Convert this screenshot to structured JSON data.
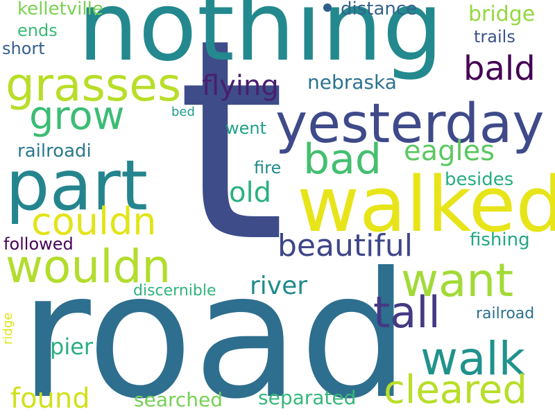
{
  "words": {
    "t": {
      "text": "t",
      "color": "#3e4c8a"
    },
    "road": {
      "text": "road",
      "color": "#2e6e8e"
    },
    "nothing": {
      "text": "nothing",
      "color": "#23898e"
    },
    "walked": {
      "text": "walked",
      "color": "#e7e419"
    },
    "part": {
      "text": "part",
      "color": "#25858e"
    },
    "yesterday": {
      "text": "yesterday",
      "color": "#3e4a89"
    },
    "grasses": {
      "text": "grasses",
      "color": "#b8de29"
    },
    "wouldn": {
      "text": "wouldn",
      "color": "#b2dd2d"
    },
    "want": {
      "text": "want",
      "color": "#a2da37"
    },
    "walk": {
      "text": "walk",
      "color": "#20928c"
    },
    "grow": {
      "text": "grow",
      "color": "#3cbc75"
    },
    "couldn": {
      "text": "couldn",
      "color": "#e2e418"
    },
    "bad": {
      "text": "bad",
      "color": "#44bf70"
    },
    "tall": {
      "text": "tall",
      "color": "#443983"
    },
    "cleared": {
      "text": "cleared",
      "color": "#b8de29"
    },
    "beautiful": {
      "text": "beautiful",
      "color": "#3f4788"
    },
    "bald": {
      "text": "bald",
      "color": "#440154"
    },
    "flying": {
      "text": "flying",
      "color": "#481f70"
    },
    "eagles": {
      "text": "eagles",
      "color": "#5cc863"
    },
    "found": {
      "text": "found",
      "color": "#d0e11c"
    },
    "old": {
      "text": "old",
      "color": "#2ab07f"
    },
    "river": {
      "text": "river",
      "color": "#228b8d"
    },
    "nebraska": {
      "text": "nebraska",
      "color": "#2c728e"
    },
    "pier": {
      "text": "pier",
      "color": "#29af7f"
    },
    "searched": {
      "text": "searched",
      "color": "#75d054"
    },
    "separated": {
      "text": "separated",
      "color": "#35b779"
    },
    "bridge": {
      "text": "bridge",
      "color": "#95d840"
    },
    "kelletville": {
      "text": "kelletville",
      "color": "#7ad151"
    },
    "distance": {
      "text": "distance",
      "color": "#33638d"
    },
    "railroadi": {
      "text": "railroadi",
      "color": "#2a788e"
    },
    "fishing": {
      "text": "fishing",
      "color": "#22a785"
    },
    "followed": {
      "text": "followed",
      "color": "#450559"
    },
    "besides": {
      "text": "besides",
      "color": "#27ad81"
    },
    "went": {
      "text": "went",
      "color": "#1fa188"
    },
    "fire": {
      "text": "fire",
      "color": "#238a8d"
    },
    "ends": {
      "text": "ends",
      "color": "#3aba76"
    },
    "short": {
      "text": "short",
      "color": "#355f8d"
    },
    "trails": {
      "text": "trails",
      "color": "#3b528b"
    },
    "discernible": {
      "text": "discernible",
      "color": "#2fb47c"
    },
    "railroad": {
      "text": "railroad",
      "color": "#2d708e"
    },
    "bed": {
      "text": "bed",
      "color": "#1f9e89"
    },
    "ridge": {
      "text": "ridge",
      "color": "#dde318"
    }
  }
}
